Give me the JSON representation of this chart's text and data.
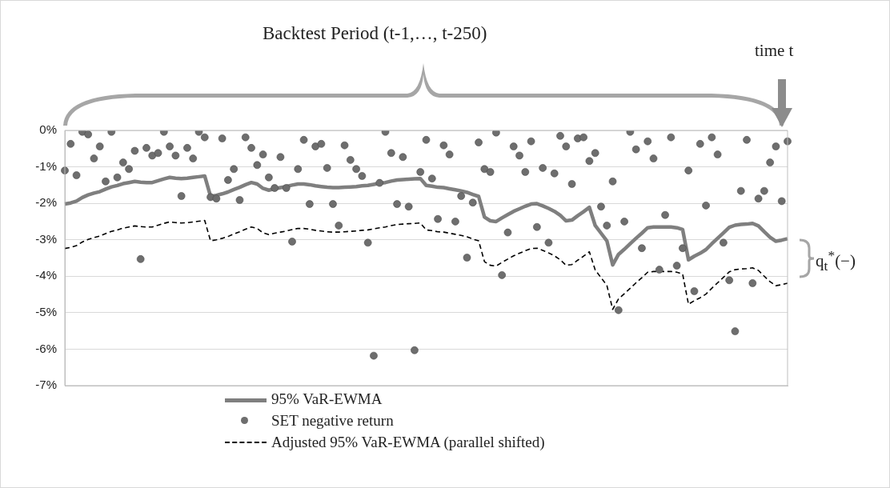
{
  "chart_data": {
    "type": "line",
    "annotations": [
      "Backtest Period (t-1,…, t-250)",
      "time t",
      "q$_{t}$$^{*}$(−)"
    ],
    "categories": [
      null,
      null,
      null,
      null,
      null,
      null,
      null,
      null,
      null,
      null,
      null,
      null,
      null,
      null,
      null,
      null,
      null,
      null,
      null,
      null,
      null,
      null,
      null,
      null,
      null,
      null,
      null,
      null,
      null,
      null,
      null,
      null,
      null,
      null,
      null,
      null,
      null,
      null,
      null,
      null,
      null,
      null,
      null,
      null,
      null,
      null,
      null,
      null,
      null,
      null,
      null,
      null,
      null,
      null,
      null,
      null,
      null,
      null,
      null,
      null,
      null,
      null,
      null,
      null,
      null,
      null,
      null,
      null,
      null,
      null,
      null,
      null,
      null,
      null,
      null,
      null,
      null,
      null,
      null,
      null,
      null,
      null,
      null,
      null,
      null,
      null,
      null,
      null,
      null,
      null,
      null,
      null,
      null,
      null,
      null,
      null,
      null,
      null,
      null,
      null,
      null,
      null,
      null,
      null,
      null,
      null,
      null,
      null,
      null,
      null,
      null,
      null,
      null,
      null,
      null,
      null,
      null,
      null,
      null,
      null,
      null,
      null,
      null,
      null,
      null
    ],
    "series": [
      {
        "name": "95% VaR-EWMA",
        "color": "#7f7f7f",
        "line_style": "solid",
        "marker": "none",
        "values": [
          -2.02,
          -1.99,
          -1.94,
          -1.84,
          -1.77,
          -1.72,
          -1.68,
          -1.61,
          -1.55,
          -1.51,
          -1.46,
          -1.43,
          -1.4,
          -1.42,
          -1.43,
          -1.43,
          -1.38,
          -1.33,
          -1.29,
          -1.31,
          -1.32,
          -1.31,
          -1.29,
          -1.27,
          -1.25,
          -1.81,
          -1.78,
          -1.74,
          -1.69,
          -1.62,
          -1.56,
          -1.49,
          -1.43,
          -1.47,
          -1.59,
          -1.64,
          -1.6,
          -1.57,
          -1.54,
          -1.5,
          -1.47,
          -1.47,
          -1.49,
          -1.52,
          -1.54,
          -1.56,
          -1.57,
          -1.57,
          -1.56,
          -1.55,
          -1.54,
          -1.52,
          -1.51,
          -1.48,
          -1.45,
          -1.43,
          -1.39,
          -1.36,
          -1.35,
          -1.34,
          -1.33,
          -1.32,
          -1.51,
          -1.53,
          -1.56,
          -1.57,
          -1.6,
          -1.63,
          -1.66,
          -1.7,
          -1.76,
          -1.81,
          -2.38,
          -2.48,
          -2.5,
          -2.4,
          -2.31,
          -2.22,
          -2.15,
          -2.08,
          -2.02,
          -2.01,
          -2.07,
          -2.14,
          -2.22,
          -2.33,
          -2.48,
          -2.46,
          -2.34,
          -2.23,
          -2.11,
          -2.61,
          -2.82,
          -3.03,
          -3.69,
          -3.4,
          -3.26,
          -3.11,
          -2.96,
          -2.82,
          -2.67,
          -2.65,
          -2.65,
          -2.65,
          -2.65,
          -2.67,
          -2.72,
          -3.55,
          -3.45,
          -3.37,
          -3.27,
          -3.11,
          -2.96,
          -2.81,
          -2.66,
          -2.6,
          -2.58,
          -2.57,
          -2.55,
          -2.62,
          -2.78,
          -2.93,
          -3.04,
          -3.01,
          -2.97
        ]
      },
      {
        "name": "SET negative return",
        "type": "scatter",
        "color": "#6e6e6e",
        "marker": "circle",
        "values": [
          -1.1,
          -0.37,
          -1.23,
          -0.04,
          -0.11,
          -0.77,
          -0.44,
          -1.4,
          -0.04,
          -1.29,
          -0.88,
          -1.06,
          -0.56,
          -3.53,
          -0.48,
          -0.69,
          -0.62,
          -0.04,
          -0.44,
          -0.69,
          -1.8,
          -0.48,
          -0.77,
          -0.04,
          -0.19,
          -1.83,
          -1.87,
          -0.22,
          -1.36,
          -1.06,
          -1.91,
          -0.19,
          -0.48,
          -0.95,
          -0.66,
          -1.29,
          -1.58,
          -0.73,
          -1.58,
          -3.05,
          -1.06,
          -0.26,
          -2.02,
          -0.44,
          -0.37,
          -1.03,
          -2.02,
          -2.61,
          -0.41,
          -0.81,
          -1.06,
          -1.25,
          -3.08,
          -6.18,
          -1.44,
          -0.04,
          -0.62,
          -2.02,
          -0.73,
          -2.09,
          -6.03,
          -1.14,
          -0.26,
          -1.32,
          -2.43,
          -0.41,
          -0.66,
          -2.5,
          -1.8,
          -3.49,
          -1.98,
          -0.33,
          -1.06,
          -1.14,
          -0.06,
          -3.97,
          -2.8,
          -0.44,
          -0.69,
          -1.14,
          -0.3,
          -2.65,
          -1.03,
          -3.08,
          -1.18,
          -0.15,
          -0.44,
          -1.47,
          -0.22,
          -0.19,
          -0.84,
          -0.62,
          -2.09,
          -2.61,
          -1.4,
          -4.93,
          -2.5,
          -0.04,
          -0.52,
          -3.23,
          -0.3,
          -0.77,
          -3.82,
          -2.32,
          -0.19,
          -3.71,
          -3.23,
          -1.1,
          -4.41,
          -0.37,
          -2.06,
          -0.19,
          -0.66,
          -3.08,
          -4.11,
          -5.51,
          -1.66,
          -0.26,
          -4.19,
          -1.87,
          -1.66,
          -0.88,
          -0.44,
          -1.94,
          -0.3
        ]
      },
      {
        "name": "Adjusted 95% VaR-EWMA (parallel shifted)",
        "color": "#000000",
        "line_style": "dashed",
        "marker": "none",
        "values": [
          -3.24,
          -3.21,
          -3.16,
          -3.06,
          -2.99,
          -2.94,
          -2.9,
          -2.83,
          -2.77,
          -2.73,
          -2.68,
          -2.65,
          -2.62,
          -2.64,
          -2.65,
          -2.65,
          -2.6,
          -2.55,
          -2.51,
          -2.53,
          -2.54,
          -2.53,
          -2.51,
          -2.49,
          -2.47,
          -3.03,
          -3.0,
          -2.96,
          -2.91,
          -2.84,
          -2.78,
          -2.71,
          -2.65,
          -2.69,
          -2.81,
          -2.86,
          -2.82,
          -2.79,
          -2.76,
          -2.72,
          -2.69,
          -2.69,
          -2.71,
          -2.74,
          -2.76,
          -2.78,
          -2.79,
          -2.79,
          -2.78,
          -2.77,
          -2.76,
          -2.74,
          -2.73,
          -2.7,
          -2.67,
          -2.65,
          -2.61,
          -2.58,
          -2.57,
          -2.56,
          -2.55,
          -2.54,
          -2.73,
          -2.75,
          -2.78,
          -2.79,
          -2.82,
          -2.85,
          -2.88,
          -2.92,
          -2.98,
          -3.03,
          -3.6,
          -3.7,
          -3.72,
          -3.62,
          -3.53,
          -3.44,
          -3.37,
          -3.3,
          -3.24,
          -3.23,
          -3.29,
          -3.36,
          -3.44,
          -3.55,
          -3.7,
          -3.68,
          -3.56,
          -3.45,
          -3.33,
          -3.83,
          -4.04,
          -4.25,
          -4.91,
          -4.62,
          -4.48,
          -4.33,
          -4.18,
          -4.04,
          -3.89,
          -3.87,
          -3.87,
          -3.87,
          -3.87,
          -3.89,
          -3.94,
          -4.77,
          -4.67,
          -4.59,
          -4.49,
          -4.33,
          -4.18,
          -4.03,
          -3.88,
          -3.82,
          -3.8,
          -3.79,
          -3.77,
          -3.84,
          -4.0,
          -4.15,
          -4.26,
          -4.23,
          -4.19
        ]
      }
    ],
    "ylim": [
      -7,
      0
    ],
    "yticks": [
      {
        "value": 0,
        "label": "0%"
      },
      {
        "value": -1,
        "label": "-1%"
      },
      {
        "value": -2,
        "label": "-2%"
      },
      {
        "value": -3,
        "label": "-3%"
      },
      {
        "value": -4,
        "label": "-4%"
      },
      {
        "value": -5,
        "label": "-5%"
      },
      {
        "value": -6,
        "label": "-6%"
      },
      {
        "value": -7,
        "label": "-7%"
      }
    ],
    "grid": "y",
    "legend": "bottom",
    "tick_labels": "y"
  }
}
